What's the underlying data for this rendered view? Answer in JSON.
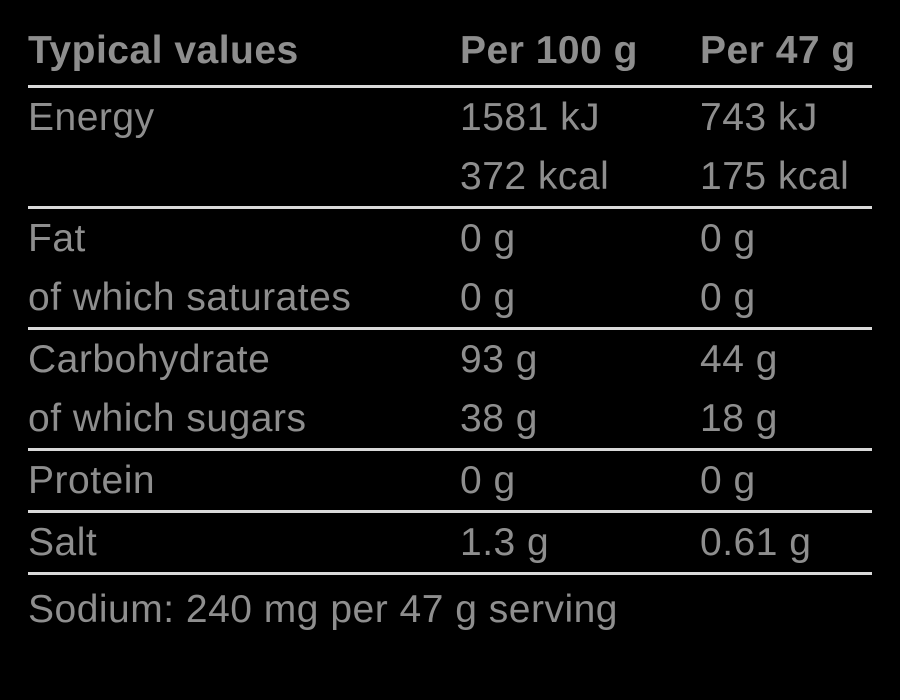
{
  "colors": {
    "background": "#000000",
    "text": "#8e8e8e",
    "rule_line": "#d9d9d9"
  },
  "table": {
    "header": {
      "label": "Typical values",
      "per_100g": "Per 100 g",
      "per_47g": "Per 47 g"
    },
    "rows": [
      {
        "label": "Energy",
        "sub_label": "",
        "per_100g": [
          "1581 kJ",
          "372 kcal"
        ],
        "per_47g": [
          "743 kJ",
          "175 kcal"
        ]
      },
      {
        "label": "Fat",
        "sub_label": "of which saturates",
        "per_100g": [
          "0 g",
          "0 g"
        ],
        "per_47g": [
          "0 g",
          "0 g"
        ]
      },
      {
        "label": "Carbohydrate",
        "sub_label": "of which sugars",
        "per_100g": [
          "93 g",
          "38 g"
        ],
        "per_47g": [
          "44 g",
          "18 g"
        ]
      },
      {
        "label": "Protein",
        "per_100g": [
          "0 g"
        ],
        "per_47g": [
          "0 g"
        ]
      },
      {
        "label": "Salt",
        "per_100g": [
          "1.3 g"
        ],
        "per_47g": [
          "0.61 g"
        ]
      }
    ],
    "footnote": "Sodium: 240 mg per 47 g serving"
  }
}
